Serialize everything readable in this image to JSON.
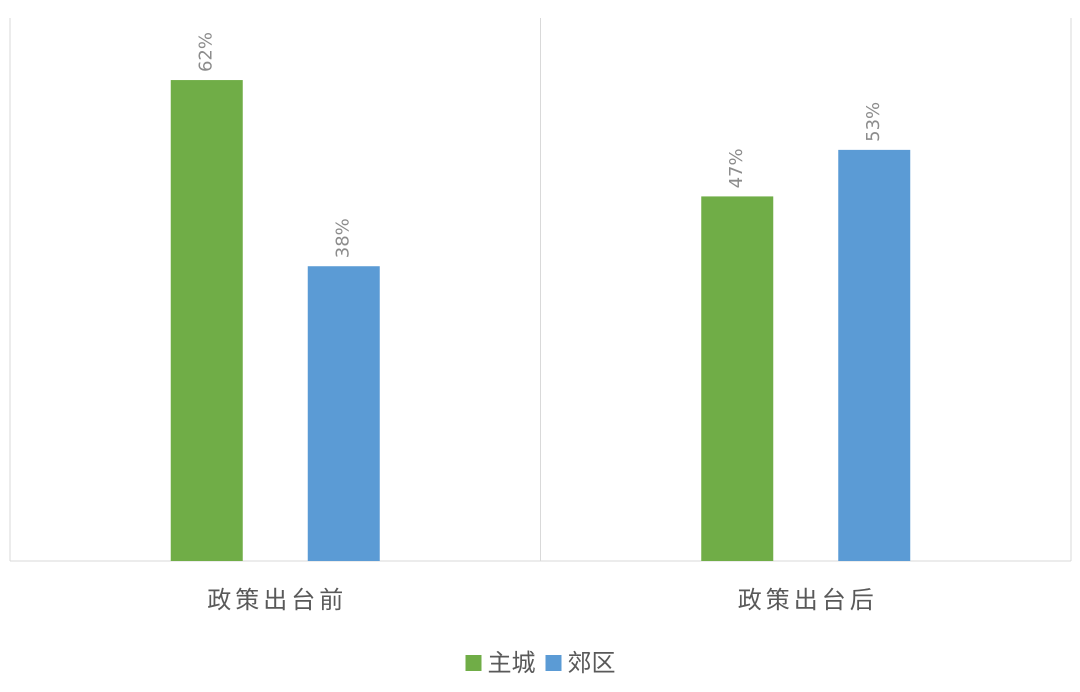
{
  "chart_data": {
    "type": "bar",
    "categories": [
      "政策出台前",
      "政策出台后"
    ],
    "series": [
      {
        "name": "主城",
        "color": "#70ad47",
        "values": [
          62,
          47
        ],
        "value_labels": [
          "62%",
          "47%"
        ]
      },
      {
        "name": "郊区",
        "color": "#5b9bd5",
        "values": [
          38,
          53
        ],
        "value_labels": [
          "38%",
          "53%"
        ]
      }
    ],
    "ylim": [
      0,
      70
    ]
  }
}
